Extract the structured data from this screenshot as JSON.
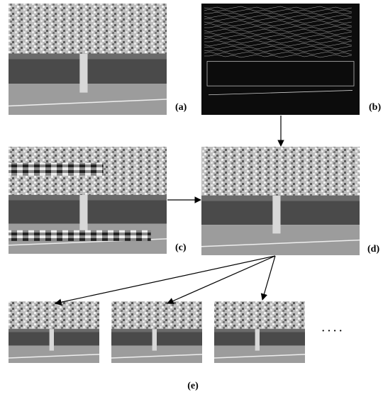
{
  "figure": {
    "panels": [
      {
        "label": "(a)"
      },
      {
        "label": "(b)"
      },
      {
        "label": "(c)"
      },
      {
        "label": "(d)"
      },
      {
        "label": "(e)"
      }
    ],
    "ellipsis": "· · · ·"
  }
}
